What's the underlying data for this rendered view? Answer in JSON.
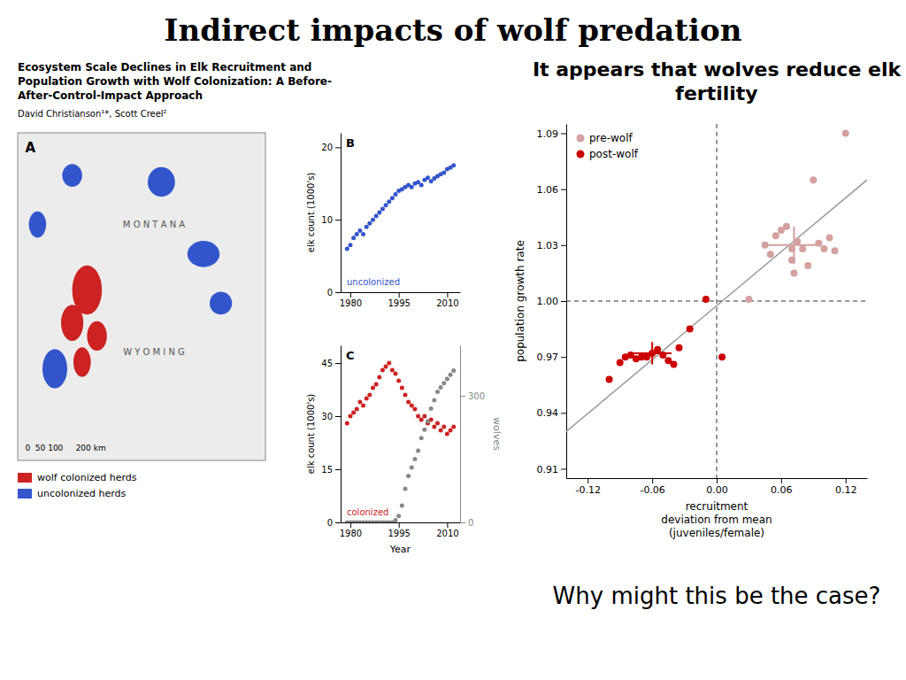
{
  "chart_data": [
    {
      "type": "map",
      "title": "Ecosystem Scale Declines in Elk Recruitment and\nPopulation Growth with Wolf Colonization: A Before-\nAfter-Control-Impact Approach",
      "subtitle": "David Christianson¹*, Scott Creel²",
      "xlim": [
        0,
        1
      ],
      "ylim": [
        0,
        1
      ],
      "tick_labels": false,
      "legend": "bottom",
      "annotations": [
        {
          "text": "A"
        },
        {
          "text": "M O N T A N A",
          "color": "#555555"
        },
        {
          "text": "W Y O M I N G",
          "color": "#555555"
        },
        {
          "text": "0  50 100     200 km"
        }
      ],
      "series": [
        {
          "name": "wolf colonized herds",
          "color": "#cc2222",
          "x": [
            0.28,
            0.22,
            0.32,
            0.26
          ],
          "values": [
            0.52,
            0.42,
            0.38,
            0.3
          ],
          "width": [
            0.12,
            0.09,
            0.08,
            0.07
          ],
          "height": [
            0.15,
            0.11,
            0.09,
            0.09
          ]
        },
        {
          "name": "uncolonized herds",
          "color": "#3355cc",
          "x": [
            0.22,
            0.08,
            0.58,
            0.75,
            0.82,
            0.15
          ],
          "values": [
            0.87,
            0.72,
            0.85,
            0.63,
            0.48,
            0.28
          ],
          "width": [
            0.08,
            0.07,
            0.11,
            0.13,
            0.09,
            0.1
          ],
          "height": [
            0.07,
            0.08,
            0.09,
            0.08,
            0.07,
            0.12
          ]
        }
      ]
    },
    {
      "type": "scatter",
      "xlim": [
        1977,
        2014
      ],
      "ylim": [
        0,
        22
      ],
      "xticks": [
        1980,
        1995,
        2010
      ],
      "yticks": [
        0,
        10,
        20
      ],
      "ylabel": "elk count (1000's)",
      "annotations": [
        {
          "text": "B"
        },
        {
          "text": "uncolonized",
          "color": "#3355cc"
        }
      ],
      "series": [
        {
          "color": "#3355cc",
          "x": [
            1979,
            1980,
            1981,
            1982,
            1983,
            1984,
            1985,
            1986,
            1987,
            1988,
            1989,
            1990,
            1991,
            1992,
            1993,
            1994,
            1995,
            1996,
            1997,
            1998,
            1999,
            2000,
            2001,
            2002,
            2003,
            2004,
            2005,
            2006,
            2007,
            2008,
            2009,
            2010,
            2011,
            2012
          ],
          "values": [
            6.0,
            6.5,
            7.5,
            8.0,
            8.5,
            8.0,
            9.0,
            9.5,
            10.0,
            10.5,
            11.0,
            11.5,
            12.0,
            12.5,
            13.0,
            13.5,
            14.0,
            14.2,
            14.5,
            14.8,
            14.5,
            15.0,
            15.2,
            14.8,
            15.5,
            15.8,
            15.3,
            15.7,
            16.0,
            16.3,
            16.5,
            17.0,
            17.2,
            17.5
          ]
        }
      ]
    },
    {
      "type": "scatter",
      "xlim": [
        1977,
        2014
      ],
      "ylim": [
        0,
        50
      ],
      "y2lim": [
        0,
        420
      ],
      "xticks": [
        1980,
        1995,
        2010
      ],
      "yticks": [
        0,
        15,
        30,
        45
      ],
      "y2ticks": [
        0,
        300
      ],
      "xlabel": "Year",
      "ylabel": "elk count (1000's)",
      "y2label": "wolves",
      "annotations": [
        {
          "text": "C"
        },
        {
          "text": "colonized",
          "color": "#cc2222"
        }
      ],
      "series": [
        {
          "color": "#cc2222",
          "x": [
            1979,
            1980,
            1981,
            1982,
            1983,
            1984,
            1985,
            1986,
            1987,
            1988,
            1989,
            1990,
            1991,
            1992,
            1993,
            1994,
            1995,
            1996,
            1997,
            1998,
            1999,
            2000,
            2001,
            2002,
            2003,
            2004,
            2005,
            2006,
            2007,
            2008,
            2009,
            2010,
            2011,
            2012
          ],
          "values": [
            28,
            30,
            31,
            32,
            34,
            33,
            35,
            36,
            38,
            39,
            41,
            43,
            44,
            45,
            43,
            42,
            40,
            38,
            36,
            34,
            33,
            32,
            30,
            29,
            30,
            28,
            29,
            27,
            28,
            26,
            27,
            25,
            26,
            27
          ]
        },
        {
          "color": "#888888",
          "axis": "y2",
          "x": [
            1979,
            1980,
            1981,
            1982,
            1983,
            1984,
            1985,
            1986,
            1987,
            1988,
            1989,
            1990,
            1991,
            1992,
            1993,
            1994,
            1995,
            1996,
            1997,
            1998,
            1999,
            2000,
            2001,
            2002,
            2003,
            2004,
            2005,
            2006,
            2007,
            2008,
            2009,
            2010,
            2011,
            2012
          ],
          "values": [
            0,
            0,
            0,
            0,
            0,
            0,
            0,
            0,
            0,
            0,
            0,
            0,
            0,
            0,
            0,
            5,
            15,
            40,
            80,
            110,
            130,
            150,
            170,
            200,
            220,
            240,
            270,
            290,
            310,
            320,
            330,
            340,
            350,
            360
          ]
        }
      ]
    },
    {
      "type": "scatter",
      "title": "Indirect impacts of wolf predation",
      "subtitle": "It appears that wolves reduce elk\nfertility",
      "annotations": [
        {
          "text": "Why might this be the case?"
        }
      ],
      "xlim": [
        -0.14,
        0.14
      ],
      "ylim": [
        0.905,
        1.095
      ],
      "xticks": [
        -0.12,
        -0.06,
        {
          "value": 0,
          "label": "0.00"
        },
        0.06,
        0.12
      ],
      "yticks": [
        0.91,
        0.94,
        0.97,
        {
          "value": 1.0,
          "label": "1.00"
        },
        1.03,
        1.06,
        1.09
      ],
      "xlabel": "recruitment\ndeviation from mean\n(juveniles/female)",
      "ylabel": "population growth rate",
      "legend": "upper left",
      "reference_lines": [
        {
          "x": 0,
          "color": "#333333",
          "line_style": "dashed"
        },
        {
          "y": 1.0,
          "color": "#333333",
          "line_style": "dashed"
        }
      ],
      "series": [
        {
          "type": "line",
          "color": "#999999",
          "x": [
            -0.14,
            0.14
          ],
          "values": [
            0.93,
            1.065
          ]
        },
        {
          "name": "pre-wolf",
          "color": "#d4a0a0",
          "x": [
            0.03,
            0.045,
            0.05,
            0.055,
            0.06,
            0.065,
            0.07,
            0.07,
            0.072,
            0.075,
            0.08,
            0.085,
            0.09,
            0.095,
            0.1,
            0.105,
            0.11,
            0.12
          ],
          "values": [
            1.001,
            1.03,
            1.025,
            1.035,
            1.038,
            1.04,
            1.028,
            1.022,
            1.015,
            1.032,
            1.028,
            1.019,
            1.065,
            1.031,
            1.028,
            1.034,
            1.027,
            1.09
          ],
          "mean_x": 0.072,
          "mean_y": 1.03,
          "error_x": 0.025,
          "error_y": 0.01
        },
        {
          "name": "post-wolf",
          "color": "#cc0000",
          "x": [
            -0.1,
            -0.09,
            -0.085,
            -0.08,
            -0.075,
            -0.07,
            -0.065,
            -0.06,
            -0.055,
            -0.05,
            -0.045,
            -0.04,
            -0.035,
            -0.025,
            -0.01,
            0.005
          ],
          "values": [
            0.958,
            0.967,
            0.97,
            0.971,
            0.969,
            0.97,
            0.97,
            0.972,
            0.974,
            0.971,
            0.968,
            0.966,
            0.975,
            0.985,
            1.001,
            0.97
          ],
          "mean_x": -0.06,
          "mean_y": 0.972,
          "error_x": 0.018,
          "error_y": 0.006
        }
      ]
    }
  ]
}
